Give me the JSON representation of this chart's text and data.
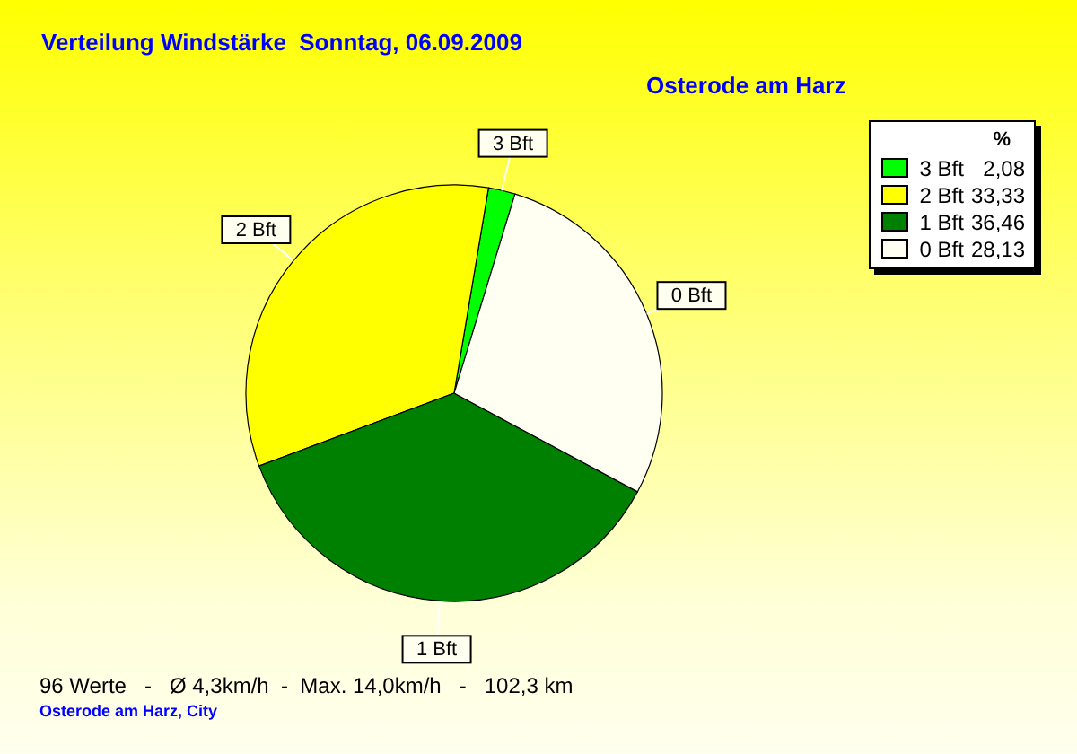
{
  "chart_data": {
    "type": "pie",
    "title": "Verteilung Windstärke  Sonntag, 06.09.2009",
    "subtitle": "Osterode am Harz",
    "legend_title": "%",
    "categories": [
      "3 Bft",
      "2 Bft",
      "1 Bft",
      "0 Bft"
    ],
    "values": [
      2.08,
      33.33,
      36.46,
      28.13
    ],
    "value_labels": [
      "2,08",
      "33,33",
      "36,46",
      "28,13"
    ],
    "colors": [
      "#00ff00",
      "#ffff00",
      "#008000",
      "#fffff2"
    ],
    "legend": "top right",
    "annotations": [
      "96 Werte   -   Ø 4,3km/h  -  Max. 14,0km/h   -   102,3 km",
      "Osterode am Harz, City"
    ]
  }
}
